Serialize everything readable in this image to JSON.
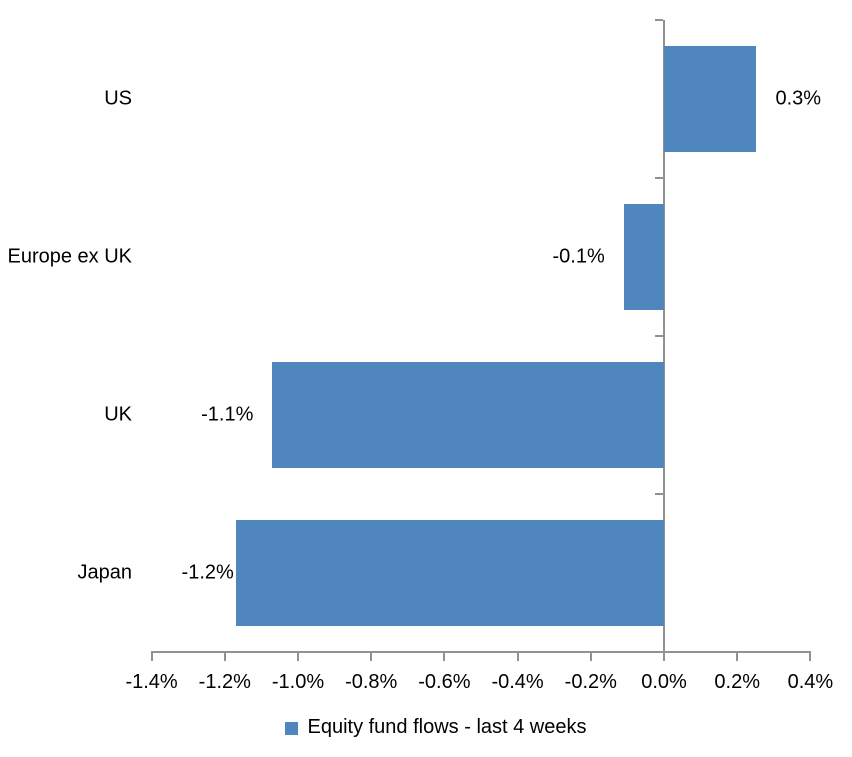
{
  "chart_data": {
    "type": "bar",
    "orientation": "horizontal",
    "title": "",
    "xlabel": "",
    "ylabel": "",
    "categories": [
      "US",
      "Europe ex UK",
      "UK",
      "Japan"
    ],
    "values": [
      0.3,
      -0.1,
      -1.1,
      -1.2
    ],
    "data_labels": [
      "0.3%",
      "-0.1%",
      "-1.1%",
      "-1.2%"
    ],
    "bar_extents_pct": [
      0.25,
      -0.11,
      -1.07,
      -1.17
    ],
    "series": [
      {
        "name": "Equity fund flows - last 4 weeks",
        "values": [
          0.3,
          -0.1,
          -1.1,
          -1.2
        ]
      }
    ],
    "series_name": "Equity fund flows - last 4 weeks",
    "xlim": [
      -1.4,
      0.4
    ],
    "x_tick_step": 0.2,
    "x_tick_labels": [
      "-1.4%",
      "-1.2%",
      "-1.0%",
      "-0.8%",
      "-0.6%",
      "-0.4%",
      "-0.2%",
      "0.0%",
      "0.2%",
      "0.4%"
    ],
    "grid": false,
    "legend_position": "bottom-center",
    "bar_color": "#4F86BD",
    "axis_color": "#919191",
    "text_color": "#000000"
  }
}
